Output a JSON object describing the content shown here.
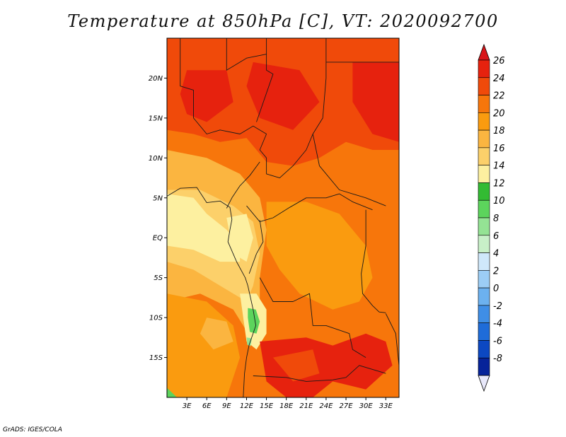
{
  "title": "Temperature at 850hPa [C], VT: 2020092700",
  "credit": "GrADS: IGES/COLA",
  "map": {
    "lon_range": [
      0,
      35
    ],
    "lat_range": [
      -20,
      25
    ],
    "lat_labels": [
      {
        "lat": 20,
        "text": "20N"
      },
      {
        "lat": 15,
        "text": "15N"
      },
      {
        "lat": 10,
        "text": "10N"
      },
      {
        "lat": 5,
        "text": "5N"
      },
      {
        "lat": 0,
        "text": "EQ"
      },
      {
        "lat": -5,
        "text": "5S"
      },
      {
        "lat": -10,
        "text": "10S"
      },
      {
        "lat": -15,
        "text": "15S"
      }
    ],
    "lon_labels": [
      {
        "lon": 3,
        "text": "3E"
      },
      {
        "lon": 6,
        "text": "6E"
      },
      {
        "lon": 9,
        "text": "9E"
      },
      {
        "lon": 12,
        "text": "12E"
      },
      {
        "lon": 15,
        "text": "15E"
      },
      {
        "lon": 18,
        "text": "18E"
      },
      {
        "lon": 21,
        "text": "21E"
      },
      {
        "lon": 24,
        "text": "24E"
      },
      {
        "lon": 27,
        "text": "27E"
      },
      {
        "lon": 30,
        "text": "30E"
      },
      {
        "lon": 33,
        "text": "33E"
      }
    ]
  },
  "colorbar": {
    "labels": [
      "26",
      "24",
      "22",
      "20",
      "18",
      "16",
      "14",
      "12",
      "10",
      "8",
      "6",
      "4",
      "2",
      "0",
      "-2",
      "-4",
      "-6",
      "-8"
    ],
    "colors": [
      "#e6220e",
      "#f04a0a",
      "#f7760b",
      "#fa9b0f",
      "#fbb540",
      "#fcd06a",
      "#fdf0a0",
      "#33bb33",
      "#5cd45c",
      "#94e394",
      "#c8f0c8",
      "#cfe8fb",
      "#9ccdf5",
      "#6cb1ef",
      "#3f8ee6",
      "#1f6cd9",
      "#0c48c2",
      "#062399",
      "#04026a"
    ],
    "top_cap_color": "#d8161a",
    "bottom_cap_color": "#e8e8fa"
  }
}
